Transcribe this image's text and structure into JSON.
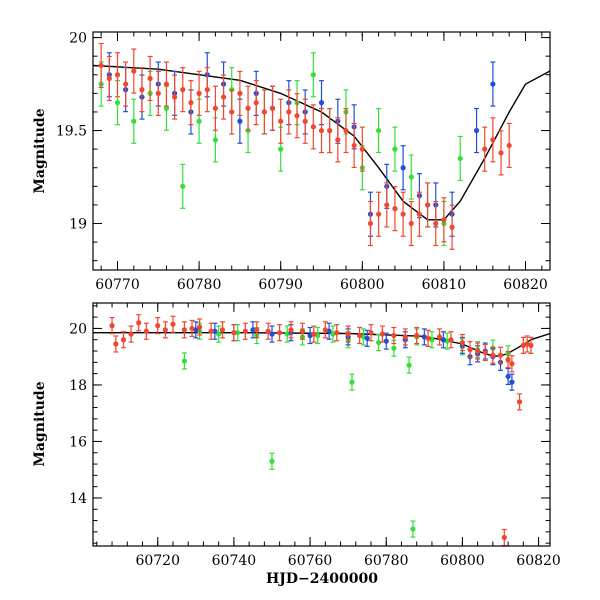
{
  "colors": {
    "green": "#33e03a",
    "blue": "#1f4fd8",
    "red": "#f2462f",
    "model": "#000000"
  },
  "chart_data": [
    {
      "type": "scatter",
      "panel": "top",
      "xlabel": "",
      "ylabel": "Magnitude",
      "xlim": [
        60767,
        60823
      ],
      "ylim": [
        20.03,
        18.75
      ],
      "y_inverted": true,
      "xticks": [
        60770,
        60780,
        60790,
        60800,
        60810,
        60820
      ],
      "yticks": [
        19,
        19.5,
        20
      ],
      "ytick_labels": [
        "19",
        "19.5",
        "20"
      ],
      "model_curve": {
        "x": [
          60767,
          60775,
          60785,
          60790,
          60795,
          60799,
          60802,
          60805,
          60808,
          60810,
          60812,
          60815,
          60818,
          60820,
          60823
        ],
        "y": [
          19.85,
          19.83,
          19.77,
          19.7,
          19.6,
          19.47,
          19.3,
          19.12,
          19.02,
          19.02,
          19.12,
          19.35,
          19.6,
          19.75,
          19.82
        ]
      },
      "series": [
        {
          "name": "",
          "color": "green",
          "x": [
            60768,
            60770,
            60772,
            60774,
            60776,
            60778,
            60780,
            60782,
            60784,
            60786,
            60788,
            60790,
            60792,
            60794,
            60796,
            60798,
            60800,
            60802,
            60804,
            60806,
            60808,
            60810,
            60812
          ],
          "y": [
            19.75,
            19.65,
            19.55,
            19.7,
            19.62,
            19.2,
            19.55,
            19.45,
            19.72,
            19.5,
            19.6,
            19.4,
            19.65,
            19.8,
            19.5,
            19.6,
            19.3,
            19.5,
            19.4,
            19.25,
            19.1,
            19.0,
            19.35
          ]
        },
        {
          "name": "",
          "color": "blue",
          "x": [
            60769,
            60771,
            60773,
            60775,
            60777,
            60779,
            60781,
            60783,
            60785,
            60787,
            60789,
            60791,
            60793,
            60795,
            60797,
            60799,
            60801,
            60803,
            60805,
            60807,
            60809,
            60811,
            60814,
            60816
          ],
          "y": [
            19.8,
            19.72,
            19.68,
            19.75,
            19.7,
            19.6,
            19.8,
            19.75,
            19.55,
            19.7,
            19.62,
            19.65,
            19.6,
            19.65,
            19.55,
            19.52,
            19.05,
            19.2,
            19.3,
            19.15,
            19.1,
            19.05,
            19.5,
            19.75
          ]
        },
        {
          "name": "",
          "color": "red",
          "x": [
            60768,
            60769,
            60770,
            60771,
            60772,
            60773,
            60774,
            60775,
            60776,
            60777,
            60778,
            60779,
            60780,
            60781,
            60782,
            60783,
            60784,
            60785,
            60786,
            60787,
            60788,
            60789,
            60790,
            60791,
            60792,
            60793,
            60794,
            60795,
            60796,
            60797,
            60798,
            60799,
            60800,
            60801,
            60802,
            60803,
            60804,
            60805,
            60806,
            60807,
            60808,
            60809,
            60810,
            60811,
            60815,
            60816,
            60817,
            60818
          ],
          "y": [
            19.85,
            19.78,
            19.8,
            19.75,
            19.82,
            19.72,
            19.78,
            19.7,
            19.75,
            19.68,
            19.72,
            19.65,
            19.7,
            19.72,
            19.62,
            19.68,
            19.6,
            19.7,
            19.62,
            19.65,
            19.6,
            19.62,
            19.55,
            19.6,
            19.58,
            19.55,
            19.52,
            19.5,
            19.5,
            19.45,
            19.5,
            19.42,
            19.4,
            19.0,
            19.05,
            19.1,
            19.08,
            19.05,
            19.0,
            19.05,
            19.1,
            19.0,
            19.02,
            18.98,
            19.4,
            19.45,
            19.38,
            19.42
          ]
        }
      ]
    },
    {
      "type": "scatter",
      "panel": "bottom",
      "xlabel": "HJD−2400000",
      "ylabel": "Magnitude",
      "xlim": [
        60703,
        60823
      ],
      "ylim": [
        20.9,
        12.3
      ],
      "y_inverted": true,
      "xticks": [
        60720,
        60740,
        60760,
        60780,
        60800,
        60820
      ],
      "yticks": [
        14,
        16,
        18,
        20
      ],
      "ytick_labels": [
        "14",
        "16",
        "18",
        "20"
      ],
      "model_curve": {
        "x": [
          60703,
          60740,
          60770,
          60790,
          60800,
          60805,
          60808,
          60810,
          60812,
          60815,
          60818,
          60823
        ],
        "y": [
          19.85,
          19.85,
          19.82,
          19.72,
          19.45,
          19.15,
          19.02,
          19.02,
          19.12,
          19.35,
          19.6,
          19.82
        ]
      },
      "series": [
        {
          "name": "",
          "color": "green",
          "x": [
            60727,
            60731,
            60736,
            60741,
            60746,
            60750,
            60754,
            60758,
            60762,
            60766,
            60770,
            60771,
            60774,
            60778,
            60782,
            60786,
            60787,
            60788,
            60792,
            60796,
            60800,
            60804,
            60808,
            60812
          ],
          "y": [
            18.85,
            19.9,
            19.8,
            19.85,
            19.75,
            15.3,
            19.8,
            19.7,
            19.75,
            19.8,
            19.6,
            18.1,
            19.7,
            19.5,
            19.3,
            18.7,
            12.9,
            19.7,
            19.6,
            19.55,
            19.35,
            19.25,
            19.3,
            19.1
          ]
        },
        {
          "name": "",
          "color": "blue",
          "x": [
            60730,
            60735,
            60740,
            60745,
            60750,
            60755,
            60760,
            60765,
            60770,
            60775,
            60780,
            60785,
            60790,
            60795,
            60800,
            60802,
            60804,
            60806,
            60808,
            60810,
            60812,
            60813
          ],
          "y": [
            19.95,
            19.9,
            19.85,
            19.95,
            19.8,
            19.85,
            19.75,
            19.9,
            19.7,
            19.65,
            19.55,
            19.6,
            19.7,
            19.6,
            19.4,
            19.0,
            19.1,
            19.2,
            19.0,
            18.8,
            18.3,
            18.1
          ]
        },
        {
          "name": "",
          "color": "red",
          "x": [
            60708,
            60709,
            60711,
            60713,
            60715,
            60717,
            60720,
            60722,
            60724,
            60727,
            60729,
            60731,
            60734,
            60737,
            60740,
            60743,
            60746,
            60749,
            60752,
            60755,
            60758,
            60761,
            60764,
            60767,
            60770,
            60773,
            60776,
            60779,
            60782,
            60785,
            60788,
            60791,
            60794,
            60797,
            60800,
            60802,
            60804,
            60806,
            60808,
            60810,
            60811,
            60812,
            60813,
            60815,
            60816,
            60817,
            60818
          ],
          "y": [
            20.1,
            19.45,
            19.6,
            19.8,
            20.2,
            19.9,
            20.1,
            19.95,
            20.15,
            19.95,
            20.0,
            20.05,
            19.9,
            19.95,
            19.85,
            19.9,
            19.95,
            19.9,
            19.85,
            19.95,
            19.9,
            19.8,
            19.95,
            19.85,
            19.8,
            19.75,
            19.85,
            19.8,
            19.75,
            19.7,
            19.75,
            19.65,
            19.7,
            19.6,
            19.5,
            19.25,
            19.2,
            19.15,
            19.05,
            19.05,
            12.6,
            18.9,
            18.75,
            17.4,
            19.4,
            19.45,
            19.4
          ]
        }
      ]
    }
  ]
}
